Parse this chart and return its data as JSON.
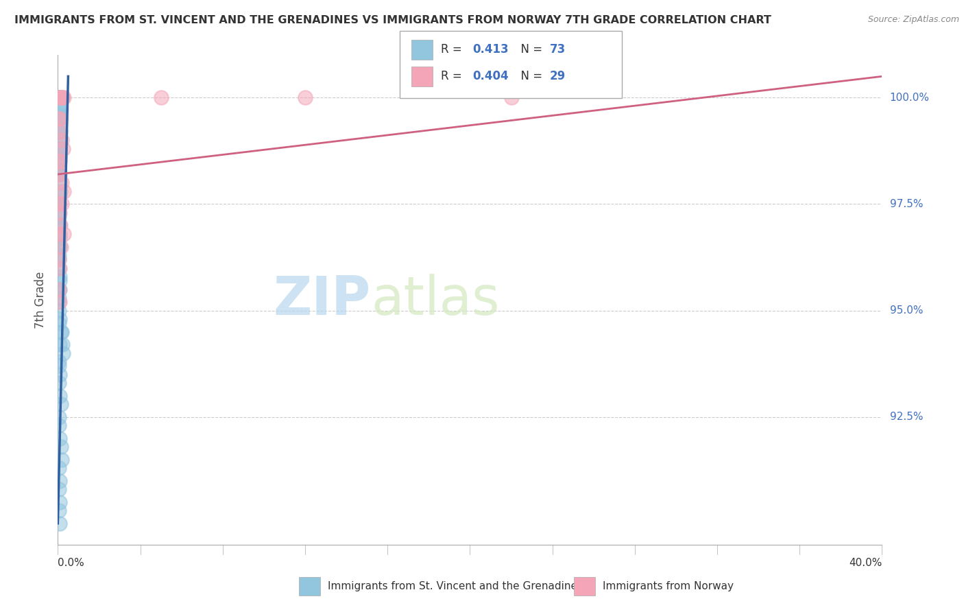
{
  "title": "IMMIGRANTS FROM ST. VINCENT AND THE GRENADINES VS IMMIGRANTS FROM NORWAY 7TH GRADE CORRELATION CHART",
  "source": "Source: ZipAtlas.com",
  "ylabel": "7th Grade",
  "yticks": [
    92.5,
    95.0,
    97.5,
    100.0
  ],
  "xlim": [
    0.0,
    40.0
  ],
  "ylim": [
    89.5,
    101.0
  ],
  "blue_label": "Immigrants from St. Vincent and the Grenadines",
  "pink_label": "Immigrants from Norway",
  "blue_R": 0.413,
  "blue_N": 73,
  "pink_R": 0.404,
  "pink_N": 29,
  "blue_color": "#92c5de",
  "pink_color": "#f4a6b8",
  "blue_line_color": "#3060a0",
  "pink_line_color": "#d06080",
  "tick_label_color": "#4070c0",
  "watermark_color": "#d0e8f5",
  "grid_color": "#cccccc",
  "text_color": "#333333",
  "source_color": "#888888",
  "ylabel_color": "#555555",
  "blue_scatter_x": [
    0.05,
    0.08,
    0.12,
    0.05,
    0.15,
    0.18,
    0.22,
    0.05,
    0.1,
    0.08,
    0.05,
    0.12,
    0.06,
    0.09,
    0.05,
    0.07,
    0.05,
    0.08,
    0.1,
    0.05,
    0.06,
    0.05,
    0.08,
    0.12,
    0.05,
    0.07,
    0.06,
    0.08,
    0.05,
    0.1,
    0.05,
    0.08,
    0.05,
    0.06,
    0.1,
    0.05,
    0.08,
    0.05,
    0.06,
    0.1,
    0.14,
    0.18,
    0.22,
    0.26,
    0.05,
    0.1,
    0.05,
    0.08,
    0.15,
    0.05,
    0.05,
    0.1,
    0.15,
    0.2,
    0.05,
    0.08,
    0.05,
    0.1,
    0.05,
    0.08,
    0.05,
    0.05,
    0.08,
    0.05,
    0.1,
    0.05,
    0.08,
    0.05,
    0.1,
    0.05,
    0.05,
    0.08,
    0.05
  ],
  "blue_scatter_y": [
    100.0,
    100.0,
    100.0,
    100.0,
    100.0,
    100.0,
    100.0,
    99.8,
    99.8,
    99.6,
    99.5,
    99.5,
    99.3,
    99.2,
    99.0,
    99.0,
    98.8,
    98.8,
    98.6,
    98.5,
    98.3,
    98.2,
    98.0,
    97.8,
    97.5,
    97.5,
    97.3,
    97.0,
    97.0,
    96.8,
    96.5,
    96.5,
    96.3,
    96.0,
    95.8,
    95.5,
    95.5,
    95.3,
    95.0,
    94.8,
    94.5,
    94.5,
    94.2,
    94.0,
    93.8,
    93.5,
    93.3,
    93.0,
    92.8,
    92.5,
    92.3,
    92.0,
    91.8,
    91.5,
    91.3,
    91.0,
    90.8,
    90.5,
    90.3,
    90.0,
    99.7,
    99.2,
    98.7,
    98.2,
    97.7,
    97.2,
    96.7,
    96.2,
    95.7,
    95.2,
    94.7,
    94.2,
    93.7
  ],
  "pink_scatter_x": [
    0.05,
    0.1,
    0.15,
    0.2,
    0.3,
    0.08,
    0.12,
    0.18,
    0.25,
    0.05,
    0.1,
    0.2,
    0.3,
    0.05,
    0.08,
    0.12,
    0.05,
    0.15,
    0.05,
    0.1,
    0.05,
    0.08,
    0.05,
    0.1,
    5.0,
    12.0,
    22.0,
    0.2,
    0.3
  ],
  "pink_scatter_y": [
    100.0,
    100.0,
    100.0,
    100.0,
    100.0,
    99.5,
    99.2,
    99.0,
    98.8,
    98.5,
    98.2,
    98.0,
    97.8,
    97.5,
    97.3,
    97.0,
    96.8,
    96.5,
    96.2,
    96.0,
    95.5,
    95.2,
    99.5,
    98.5,
    100.0,
    100.0,
    100.0,
    97.5,
    96.8
  ],
  "blue_line_x0": 0.0,
  "blue_line_y0": 90.0,
  "blue_line_x1": 0.5,
  "blue_line_y1": 100.5,
  "pink_line_x0": 0.0,
  "pink_line_y0": 98.2,
  "pink_line_x1": 40.0,
  "pink_line_y1": 100.5
}
